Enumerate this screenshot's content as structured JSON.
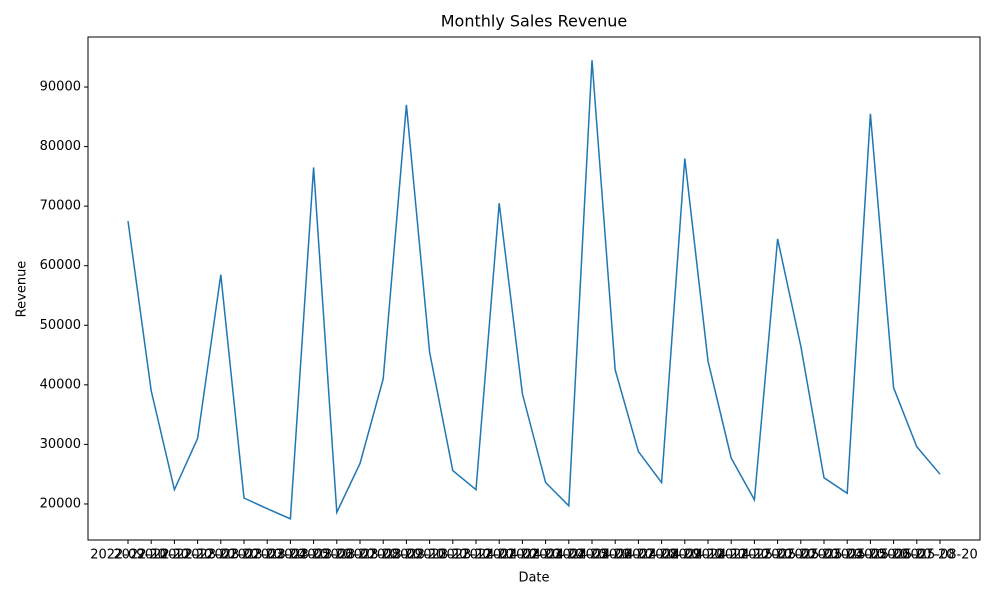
{
  "chart_data": {
    "type": "line",
    "title": "Monthly Sales Revenue",
    "x_label": "Date",
    "y_label": "Revenue",
    "categories": [
      "2022-09-20",
      "2022-10-20",
      "2022-11-20",
      "2022-12-20",
      "2023-01-20",
      "2023-02-20",
      "2023-03-20",
      "2023-04-20",
      "2023-05-20",
      "2023-06-20",
      "2023-07-20",
      "2023-08-20",
      "2023-09-20",
      "2023-10-20",
      "2023-11-20",
      "2023-12-20",
      "2024-01-20",
      "2024-02-20",
      "2024-03-20",
      "2024-04-20",
      "2024-05-20",
      "2024-06-20",
      "2024-07-20",
      "2024-08-20",
      "2024-09-20",
      "2024-10-20",
      "2024-11-20",
      "2024-12-20",
      "2025-01-20",
      "2025-02-20",
      "2025-03-20",
      "2025-04-20",
      "2025-05-20",
      "2025-06-20",
      "2025-07-20",
      "2025-08-20"
    ],
    "series": [
      {
        "name": "Revenue",
        "color": "#1f77b4",
        "values": [
          67500,
          39000,
          22400,
          31000,
          58500,
          21000,
          19200,
          17500,
          76500,
          18600,
          26800,
          41000,
          87000,
          45500,
          25600,
          22400,
          70500,
          38500,
          23600,
          19700,
          94500,
          42500,
          28800,
          23600,
          78000,
          44000,
          27700,
          20700,
          64500,
          46500,
          24400,
          21800,
          85500,
          39500,
          29600,
          25000
        ]
      }
    ],
    "ylim": [
      13950,
      98400
    ],
    "yticks": [
      20000,
      30000,
      40000,
      50000,
      60000,
      70000,
      80000,
      90000
    ],
    "grid": false
  }
}
